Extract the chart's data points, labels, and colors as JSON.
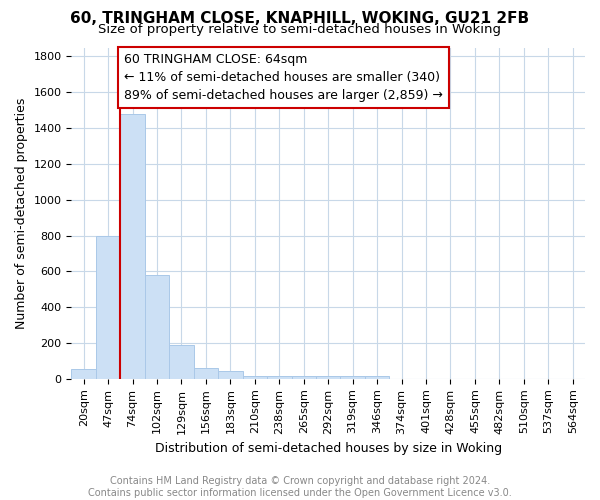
{
  "title": "60, TRINGHAM CLOSE, KNAPHILL, WOKING, GU21 2FB",
  "subtitle": "Size of property relative to semi-detached houses in Woking",
  "xlabel": "Distribution of semi-detached houses by size in Woking",
  "ylabel": "Number of semi-detached properties",
  "footer_line1": "Contains HM Land Registry data © Crown copyright and database right 2024.",
  "footer_line2": "Contains public sector information licensed under the Open Government Licence v3.0.",
  "bar_labels": [
    "20sqm",
    "47sqm",
    "74sqm",
    "102sqm",
    "129sqm",
    "156sqm",
    "183sqm",
    "210sqm",
    "238sqm",
    "265sqm",
    "292sqm",
    "319sqm",
    "346sqm",
    "374sqm",
    "401sqm",
    "428sqm",
    "455sqm",
    "482sqm",
    "510sqm",
    "537sqm",
    "564sqm"
  ],
  "bar_values": [
    55,
    800,
    1480,
    580,
    190,
    62,
    42,
    18,
    15,
    15,
    15,
    15,
    18,
    0,
    0,
    0,
    0,
    0,
    0,
    0,
    0
  ],
  "bar_color": "#cce0f5",
  "bar_edge_color": "#aac8e8",
  "ylim": [
    0,
    1850
  ],
  "yticks": [
    0,
    200,
    400,
    600,
    800,
    1000,
    1200,
    1400,
    1600,
    1800
  ],
  "annotation_title": "60 TRINGHAM CLOSE: 64sqm",
  "annotation_line1": "← 11% of semi-detached houses are smaller (340)",
  "annotation_line2": "89% of semi-detached houses are larger (2,859) →",
  "vline_bin_index": 2,
  "vline_color": "#cc0000",
  "annotation_box_color": "#cc0000",
  "grid_color": "#c8d8e8",
  "background_color": "#ffffff",
  "title_fontsize": 11,
  "subtitle_fontsize": 9.5,
  "annotation_fontsize": 9,
  "axis_label_fontsize": 9,
  "tick_fontsize": 8,
  "footer_fontsize": 7
}
